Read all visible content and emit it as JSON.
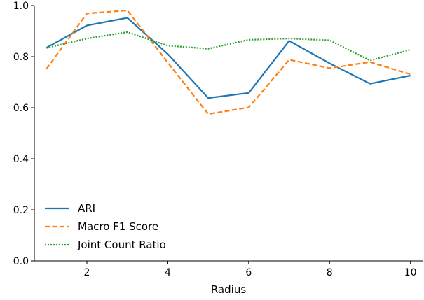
{
  "chart_data": {
    "type": "line",
    "xlabel": "Radius",
    "ylabel": "",
    "xlim": [
      0.7,
      10.3
    ],
    "ylim": [
      0.0,
      1.0
    ],
    "xticks": [
      2,
      4,
      6,
      8,
      10
    ],
    "yticks": [
      0.0,
      0.2,
      0.4,
      0.6,
      0.8,
      1.0
    ],
    "grid": false,
    "legend_position": "lower-left",
    "x": [
      1,
      2,
      3,
      4,
      5,
      6,
      7,
      8,
      9,
      10
    ],
    "series": [
      {
        "name": "ARI",
        "color": "#1f77b4",
        "style": "solid",
        "values": [
          0.835,
          0.922,
          0.952,
          0.81,
          0.638,
          0.658,
          0.862,
          0.774,
          0.694,
          0.726
        ]
      },
      {
        "name": "Macro F1 Score",
        "color": "#ff7f0e",
        "style": "dashed",
        "values": [
          0.752,
          0.969,
          0.981,
          0.777,
          0.575,
          0.601,
          0.788,
          0.755,
          0.779,
          0.731
        ]
      },
      {
        "name": "Joint Count Ratio",
        "color": "#2ca02c",
        "style": "dotted",
        "values": [
          0.834,
          0.871,
          0.896,
          0.843,
          0.831,
          0.866,
          0.871,
          0.864,
          0.785,
          0.827
        ]
      }
    ]
  }
}
